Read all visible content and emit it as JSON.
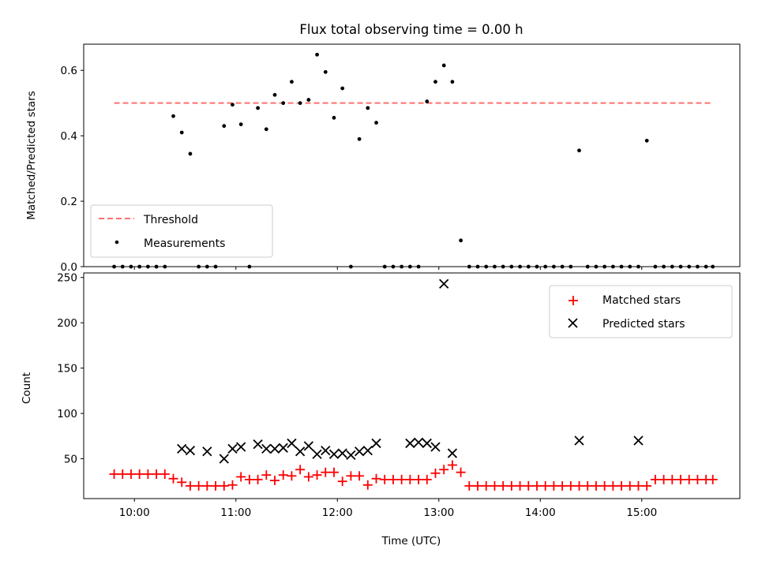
{
  "chart_data": [
    {
      "type": "scatter",
      "title": "Flux total observing time = 0.00 h",
      "xlabel": "",
      "ylabel": "Matched/Predicted stars",
      "xlim": [
        "09:30",
        "15:58"
      ],
      "ylim": [
        0,
        0.68
      ],
      "yticks": [
        0.0,
        0.2,
        0.4,
        0.6
      ],
      "ytick_labels": [
        "0.0",
        "0.2",
        "0.4",
        "0.6"
      ],
      "xticks": [
        "10:00",
        "11:00",
        "12:00",
        "13:00",
        "14:00",
        "15:00"
      ],
      "show_xtick_labels": false,
      "grid": false,
      "legend": "lower-left",
      "threshold": {
        "name": "Threshold",
        "value": 0.5,
        "x": [
          "09:48",
          "15:42"
        ],
        "color": "#ff7070",
        "style": "dashed"
      },
      "series": [
        {
          "name": "Measurements",
          "marker": "dot",
          "color": "#000000",
          "x": [
            "09:48",
            "09:53",
            "09:58",
            "10:03",
            "10:08",
            "10:13",
            "10:18",
            "10:23",
            "10:28",
            "10:33",
            "10:38",
            "10:43",
            "10:48",
            "10:53",
            "10:58",
            "11:03",
            "11:08",
            "11:13",
            "11:18",
            "11:23",
            "11:28",
            "11:33",
            "11:38",
            "11:43",
            "11:48",
            "11:53",
            "11:58",
            "12:03",
            "12:08",
            "12:13",
            "12:18",
            "12:23",
            "12:28",
            "12:33",
            "12:38",
            "12:43",
            "12:48",
            "12:53",
            "12:58",
            "13:03",
            "13:08",
            "13:13",
            "13:18",
            "13:23",
            "13:28",
            "13:33",
            "13:38",
            "13:43",
            "13:48",
            "13:53",
            "13:58",
            "14:03",
            "14:08",
            "14:13",
            "14:18",
            "14:23",
            "14:28",
            "14:33",
            "14:38",
            "14:43",
            "14:48",
            "14:53",
            "14:58",
            "15:03",
            "15:08",
            "15:13",
            "15:18",
            "15:23",
            "15:28",
            "15:33",
            "15:38",
            "15:42"
          ],
          "values": [
            0,
            0,
            0,
            0,
            0,
            0,
            0,
            0.46,
            0.41,
            0.345,
            0,
            0,
            0,
            0.43,
            0.495,
            0.435,
            0,
            0.485,
            0.42,
            0.525,
            0.5,
            0.565,
            0.5,
            0.51,
            0.648,
            0.595,
            0.455,
            0.545,
            0,
            0.39,
            0.485,
            0.44,
            0,
            0,
            0,
            0,
            0,
            0.505,
            0.565,
            0.615,
            0.565,
            0.08,
            0,
            0,
            0,
            0,
            0,
            0,
            0,
            0,
            0,
            0,
            0,
            0,
            0,
            0.355,
            0,
            0,
            0,
            0,
            0,
            0,
            0,
            0.385,
            0,
            0,
            0,
            0,
            0,
            0,
            0,
            0
          ]
        }
      ]
    },
    {
      "type": "scatter",
      "title": "",
      "xlabel": "Time (UTC)",
      "ylabel": "Count",
      "xlim": [
        "09:30",
        "15:58"
      ],
      "ylim": [
        6,
        255
      ],
      "yticks": [
        50,
        100,
        150,
        200,
        250
      ],
      "ytick_labels": [
        "50",
        "100",
        "150",
        "200",
        "250"
      ],
      "xticks": [
        "10:00",
        "11:00",
        "12:00",
        "13:00",
        "14:00",
        "15:00"
      ],
      "xtick_labels": [
        "10:00",
        "11:00",
        "12:00",
        "13:00",
        "14:00",
        "15:00"
      ],
      "grid": false,
      "legend": "upper-right",
      "series": [
        {
          "name": "Matched stars",
          "marker": "plus",
          "color": "#ff0000",
          "x": [
            "09:48",
            "09:53",
            "09:58",
            "10:03",
            "10:08",
            "10:13",
            "10:18",
            "10:23",
            "10:28",
            "10:33",
            "10:38",
            "10:43",
            "10:48",
            "10:53",
            "10:58",
            "11:03",
            "11:08",
            "11:13",
            "11:18",
            "11:23",
            "11:28",
            "11:33",
            "11:38",
            "11:43",
            "11:48",
            "11:53",
            "11:58",
            "12:03",
            "12:08",
            "12:13",
            "12:18",
            "12:23",
            "12:28",
            "12:33",
            "12:38",
            "12:43",
            "12:48",
            "12:53",
            "12:58",
            "13:03",
            "13:08",
            "13:13",
            "13:18",
            "13:23",
            "13:28",
            "13:33",
            "13:38",
            "13:43",
            "13:48",
            "13:53",
            "13:58",
            "14:03",
            "14:08",
            "14:13",
            "14:18",
            "14:23",
            "14:28",
            "14:33",
            "14:38",
            "14:43",
            "14:48",
            "14:53",
            "14:58",
            "15:03",
            "15:08",
            "15:13",
            "15:18",
            "15:23",
            "15:28",
            "15:33",
            "15:38",
            "15:42"
          ],
          "values": [
            33,
            33,
            33,
            33,
            33,
            33,
            33,
            28,
            24,
            20,
            20,
            20,
            20,
            20,
            21,
            30,
            27,
            27,
            32,
            26,
            32,
            31,
            38,
            30,
            32,
            35,
            35,
            25,
            31,
            31,
            21,
            28,
            27,
            27,
            27,
            27,
            27,
            27,
            34,
            38,
            43,
            35,
            20,
            20,
            20,
            20,
            20,
            20,
            20,
            20,
            20,
            20,
            20,
            20,
            20,
            20,
            20,
            20,
            20,
            20,
            20,
            20,
            20,
            20,
            27,
            27,
            27,
            27,
            27,
            27,
            27,
            27
          ]
        },
        {
          "name": "Predicted stars",
          "marker": "x",
          "color": "#000000",
          "x": [
            "10:28",
            "10:33",
            "10:43",
            "10:53",
            "10:58",
            "11:03",
            "11:13",
            "11:18",
            "11:23",
            "11:28",
            "11:33",
            "11:38",
            "11:43",
            "11:48",
            "11:53",
            "11:58",
            "12:03",
            "12:08",
            "12:13",
            "12:18",
            "12:23",
            "12:43",
            "12:48",
            "12:53",
            "12:58",
            "13:03",
            "13:08",
            "14:23",
            "14:58"
          ],
          "values": [
            61,
            59,
            58,
            50,
            61,
            63,
            66,
            61,
            61,
            62,
            67,
            58,
            64,
            55,
            59,
            55,
            56,
            54,
            58,
            59,
            67,
            67,
            68,
            67,
            63,
            243,
            56,
            70,
            70
          ]
        }
      ]
    }
  ]
}
